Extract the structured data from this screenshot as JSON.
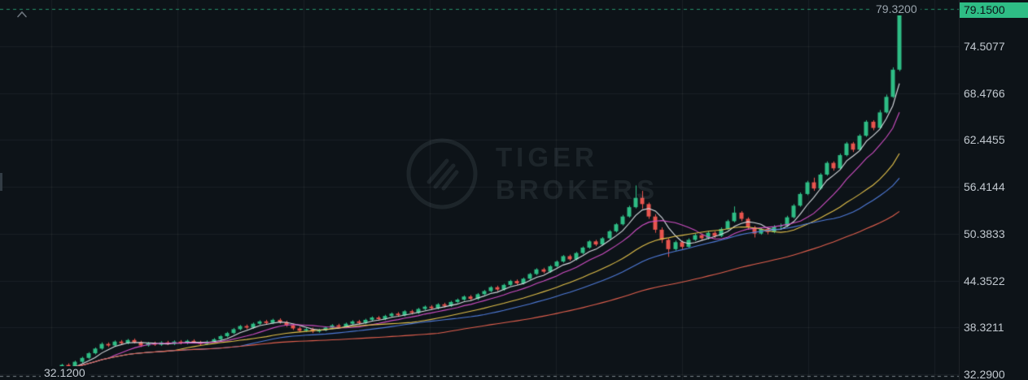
{
  "controls": {
    "collapse_tooltip": "collapse"
  },
  "chart_data": {
    "type": "candlestick",
    "watermark": {
      "line1": "TIGER",
      "line2": "BROKERS"
    },
    "current_price": "79.1500",
    "high_marker": {
      "value": 79.32,
      "label": "79.3200"
    },
    "low_marker": {
      "value": 32.12,
      "label": "32.1200"
    },
    "y_axis": {
      "min": 32.29,
      "max": 79.15,
      "labels": [
        "74.5077",
        "68.4766",
        "62.4455",
        "56.4144",
        "50.3833",
        "44.3522",
        "38.3211",
        "32.2900"
      ]
    },
    "colors": {
      "background": "#0d1318",
      "grid": "rgba(255,255,255,0.055)",
      "up": "#2ebd85",
      "down": "#e8544e",
      "axis_text": "#c1c8cf",
      "tag_bg": "#2ebd85",
      "tag_text": "#0d1318",
      "high_line": "rgba(46,189,133,0.75)",
      "low_line": "rgba(160,170,178,0.75)"
    },
    "moving_averages": [
      {
        "period": 5,
        "color": "#d8dde2"
      },
      {
        "period": 10,
        "color": "#cf4ec4"
      },
      {
        "period": 20,
        "color": "#e2c04a"
      },
      {
        "period": 30,
        "color": "#4f7bd9"
      },
      {
        "period": 60,
        "color": "#e2604e"
      }
    ],
    "candles": [
      [
        32.3,
        32.75,
        32.12,
        32.6
      ],
      [
        32.6,
        33.15,
        32.45,
        33.0
      ],
      [
        33.0,
        33.65,
        32.85,
        33.5
      ],
      [
        33.5,
        33.7,
        33.1,
        33.3
      ],
      [
        33.3,
        34.05,
        33.15,
        33.9
      ],
      [
        33.9,
        34.55,
        33.75,
        34.4
      ],
      [
        34.4,
        35.15,
        34.25,
        35.0
      ],
      [
        35.0,
        35.75,
        34.85,
        35.6
      ],
      [
        35.6,
        36.4,
        35.45,
        36.2
      ],
      [
        36.2,
        36.4,
        35.8,
        36.0
      ],
      [
        36.0,
        36.65,
        35.85,
        36.5
      ],
      [
        36.5,
        36.7,
        36.1,
        36.3
      ],
      [
        36.3,
        36.85,
        36.15,
        36.7
      ],
      [
        36.7,
        36.9,
        36.25,
        36.4
      ],
      [
        36.4,
        36.6,
        35.8,
        36.0
      ],
      [
        36.0,
        36.45,
        35.85,
        36.3
      ],
      [
        36.3,
        36.5,
        35.95,
        36.1
      ],
      [
        36.1,
        36.55,
        35.95,
        36.4
      ],
      [
        36.4,
        36.6,
        36.05,
        36.2
      ],
      [
        36.2,
        36.65,
        36.05,
        36.5
      ],
      [
        36.5,
        36.7,
        36.15,
        36.3
      ],
      [
        36.3,
        36.75,
        36.15,
        36.6
      ],
      [
        36.6,
        36.8,
        36.25,
        36.4
      ],
      [
        36.4,
        36.6,
        36.05,
        36.2
      ],
      [
        36.2,
        36.65,
        36.05,
        36.5
      ],
      [
        36.5,
        36.95,
        36.35,
        36.8
      ],
      [
        36.8,
        37.35,
        36.65,
        37.2
      ],
      [
        37.2,
        37.75,
        37.05,
        37.6
      ],
      [
        37.6,
        38.25,
        37.45,
        38.1
      ],
      [
        38.1,
        38.65,
        37.95,
        38.5
      ],
      [
        38.5,
        38.7,
        38.1,
        38.3
      ],
      [
        38.3,
        38.95,
        38.15,
        38.8
      ],
      [
        38.8,
        39.25,
        38.65,
        39.1
      ],
      [
        39.1,
        39.3,
        38.7,
        38.9
      ],
      [
        38.9,
        39.45,
        38.75,
        39.3
      ],
      [
        39.3,
        39.5,
        38.8,
        39.0
      ],
      [
        39.0,
        39.2,
        38.4,
        38.6
      ],
      [
        38.6,
        38.8,
        38.0,
        38.2
      ],
      [
        38.2,
        38.4,
        37.7,
        37.9
      ],
      [
        37.9,
        38.25,
        37.75,
        38.1
      ],
      [
        38.1,
        38.3,
        37.6,
        37.8
      ],
      [
        37.8,
        38.15,
        37.65,
        38.0
      ],
      [
        38.0,
        38.45,
        37.85,
        38.3
      ],
      [
        38.3,
        38.75,
        38.15,
        38.6
      ],
      [
        38.6,
        38.8,
        38.2,
        38.4
      ],
      [
        38.4,
        38.95,
        38.25,
        38.8
      ],
      [
        38.8,
        39.25,
        38.65,
        39.1
      ],
      [
        39.1,
        39.3,
        38.7,
        38.9
      ],
      [
        38.9,
        39.45,
        38.75,
        39.3
      ],
      [
        39.3,
        39.75,
        39.15,
        39.6
      ],
      [
        39.6,
        39.8,
        39.2,
        39.4
      ],
      [
        39.4,
        39.95,
        39.25,
        39.8
      ],
      [
        39.8,
        40.25,
        39.65,
        40.1
      ],
      [
        40.1,
        40.3,
        39.7,
        39.9
      ],
      [
        39.9,
        40.55,
        39.75,
        40.4
      ],
      [
        40.4,
        40.6,
        40.0,
        40.2
      ],
      [
        40.2,
        40.85,
        40.05,
        40.7
      ],
      [
        40.7,
        41.15,
        40.55,
        41.0
      ],
      [
        41.0,
        41.2,
        40.6,
        40.8
      ],
      [
        40.8,
        41.45,
        40.65,
        41.3
      ],
      [
        41.3,
        41.5,
        40.9,
        41.1
      ],
      [
        41.1,
        41.75,
        40.95,
        41.6
      ],
      [
        41.6,
        42.05,
        41.45,
        41.9
      ],
      [
        41.9,
        42.45,
        41.75,
        42.3
      ],
      [
        42.3,
        42.5,
        41.8,
        42.0
      ],
      [
        42.0,
        42.75,
        41.85,
        42.6
      ],
      [
        42.6,
        43.15,
        42.45,
        43.0
      ],
      [
        43.0,
        43.65,
        42.85,
        43.5
      ],
      [
        43.5,
        43.7,
        43.0,
        43.2
      ],
      [
        43.2,
        43.95,
        43.05,
        43.8
      ],
      [
        43.8,
        44.45,
        43.65,
        44.3
      ],
      [
        44.3,
        44.5,
        43.8,
        44.0
      ],
      [
        44.0,
        44.75,
        43.85,
        44.6
      ],
      [
        44.6,
        45.35,
        44.45,
        45.2
      ],
      [
        45.2,
        45.95,
        45.05,
        45.8
      ],
      [
        45.8,
        46.0,
        45.3,
        45.5
      ],
      [
        45.5,
        46.35,
        45.35,
        46.2
      ],
      [
        46.2,
        46.95,
        46.05,
        46.8
      ],
      [
        46.8,
        47.65,
        46.65,
        47.5
      ],
      [
        47.5,
        47.7,
        46.9,
        47.1
      ],
      [
        47.1,
        48.05,
        46.95,
        47.9
      ],
      [
        47.9,
        48.75,
        47.75,
        48.6
      ],
      [
        48.6,
        49.55,
        48.45,
        49.4
      ],
      [
        49.4,
        49.6,
        48.8,
        49.0
      ],
      [
        49.0,
        49.95,
        48.85,
        49.8
      ],
      [
        49.8,
        50.85,
        49.65,
        50.7
      ],
      [
        50.7,
        51.75,
        50.55,
        51.6
      ],
      [
        51.6,
        52.8,
        51.45,
        52.6
      ],
      [
        52.6,
        54.0,
        52.45,
        53.8
      ],
      [
        53.8,
        56.6,
        53.65,
        55.0
      ],
      [
        55.0,
        55.9,
        53.6,
        54.2
      ],
      [
        54.2,
        54.4,
        52.3,
        52.6
      ],
      [
        52.6,
        52.9,
        50.5,
        50.9
      ],
      [
        50.9,
        51.2,
        49.2,
        49.6
      ],
      [
        49.6,
        49.8,
        47.4,
        48.4
      ],
      [
        48.4,
        49.5,
        48.2,
        49.3
      ],
      [
        49.3,
        49.5,
        48.4,
        48.7
      ],
      [
        48.7,
        49.8,
        48.55,
        49.6
      ],
      [
        49.6,
        50.4,
        49.45,
        50.2
      ],
      [
        50.2,
        50.4,
        49.55,
        49.8
      ],
      [
        49.8,
        50.7,
        49.65,
        50.5
      ],
      [
        50.5,
        50.7,
        49.85,
        50.1
      ],
      [
        50.1,
        51.2,
        49.95,
        51.0
      ],
      [
        51.0,
        52.2,
        50.85,
        52.0
      ],
      [
        52.0,
        53.9,
        51.85,
        53.1
      ],
      [
        53.1,
        53.3,
        52.0,
        52.3
      ],
      [
        52.3,
        52.5,
        50.9,
        51.2
      ],
      [
        51.2,
        51.4,
        49.9,
        50.4
      ],
      [
        50.4,
        51.2,
        50.25,
        51.0
      ],
      [
        51.0,
        51.2,
        50.3,
        50.6
      ],
      [
        50.6,
        51.5,
        50.45,
        51.3
      ],
      [
        51.3,
        51.7,
        50.9,
        51.4
      ],
      [
        51.4,
        52.7,
        51.25,
        52.5
      ],
      [
        52.5,
        54.2,
        52.35,
        54.0
      ],
      [
        54.0,
        55.7,
        53.85,
        55.5
      ],
      [
        55.5,
        57.2,
        55.35,
        57.0
      ],
      [
        57.0,
        57.6,
        55.9,
        56.2
      ],
      [
        56.2,
        58.2,
        56.05,
        58.0
      ],
      [
        58.0,
        59.7,
        57.85,
        59.5
      ],
      [
        59.5,
        59.7,
        58.5,
        58.8
      ],
      [
        58.8,
        60.7,
        58.65,
        60.5
      ],
      [
        60.5,
        62.2,
        60.35,
        62.0
      ],
      [
        62.0,
        62.2,
        60.9,
        61.2
      ],
      [
        61.2,
        63.2,
        61.05,
        63.0
      ],
      [
        63.0,
        65.0,
        62.85,
        64.8
      ],
      [
        64.8,
        65.0,
        63.7,
        64.0
      ],
      [
        64.0,
        66.3,
        63.85,
        66.0
      ],
      [
        66.0,
        68.3,
        65.85,
        68.0
      ],
      [
        68.0,
        71.8,
        67.85,
        71.5
      ],
      [
        71.5,
        79.32,
        71.3,
        79.15
      ]
    ]
  }
}
